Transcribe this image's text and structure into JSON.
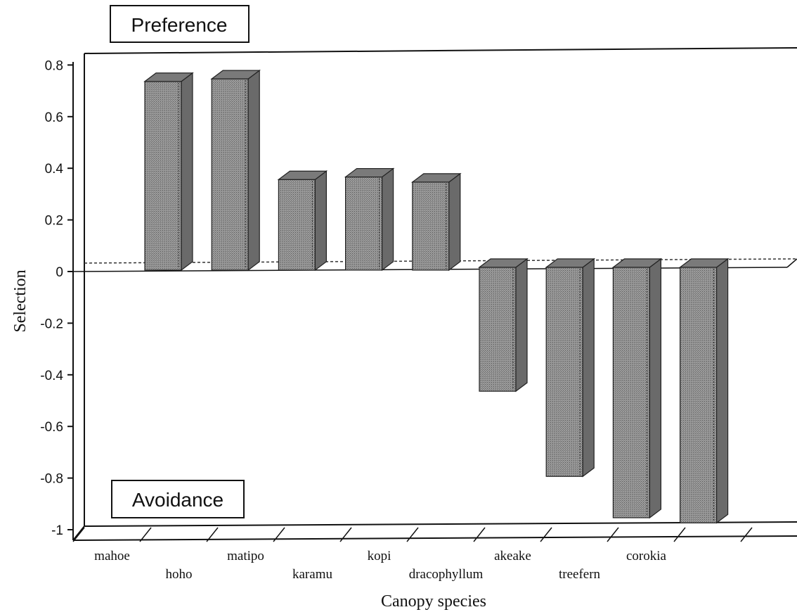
{
  "chart_data": {
    "type": "bar",
    "categories": [
      "mahoe",
      "hoho",
      "matipo",
      "karamu",
      "kopi",
      "dracophyllum",
      "akeake",
      "treefern",
      "corokia"
    ],
    "values": [
      0.72,
      0.73,
      0.34,
      0.35,
      0.33,
      -0.48,
      -0.81,
      -0.97,
      -0.99
    ],
    "xlabel": "Canopy species",
    "ylabel": "Selection",
    "ylim": [
      -1,
      0.8
    ],
    "yticks": [
      0.8,
      0.6,
      0.4,
      0.2,
      0,
      -0.2,
      -0.4,
      -0.6,
      -0.8,
      -1
    ],
    "ytick_labels": [
      "0.8",
      "0.6",
      "0.4",
      "0.2",
      "0",
      "-0.2",
      "-0.4",
      "-0.6",
      "-0.8",
      "-1"
    ],
    "annotations": {
      "top": "Preference",
      "bottom": "Avoidance"
    },
    "grid": false,
    "bar_color": "#8c8c8c",
    "style": "3d"
  }
}
